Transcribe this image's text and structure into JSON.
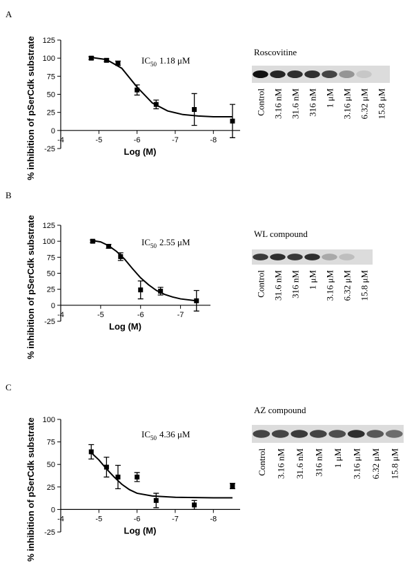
{
  "chart_data": [
    {
      "type": "scatter",
      "panel": "A",
      "xlabel": "Log (M)",
      "ylabel": "% inhibition of pSerCdk substrate",
      "annotation": {
        "prefix": "IC",
        "subscript": "50",
        "text": "1.18 μM"
      },
      "x": [
        -4.8,
        -5.2,
        -5.5,
        -6,
        -6.5,
        -7.5,
        -8.5
      ],
      "values": [
        100,
        97,
        93,
        56,
        36,
        29,
        13
      ],
      "errors": [
        2,
        2,
        3,
        7,
        6,
        22,
        23
      ],
      "fit": {
        "x": [
          -4.8,
          -5.2,
          -5.6,
          -6.0,
          -6.4,
          -6.8,
          -7.2,
          -7.6,
          -8.0,
          -8.5
        ],
        "y": [
          101,
          98,
          86,
          60,
          38,
          27,
          22,
          20,
          19,
          19
        ]
      },
      "color": "#000000",
      "xlim": [
        -4,
        -8.7
      ],
      "xticks": [
        -4,
        -5,
        -6,
        -7,
        -8
      ],
      "ylim": [
        -25,
        125
      ],
      "yticks": [
        -25,
        0,
        25,
        50,
        75,
        100,
        125
      ]
    },
    {
      "type": "scatter",
      "panel": "B",
      "xlabel": "Log (M)",
      "ylabel": "% inhibition of pSerCdk substrate",
      "annotation": {
        "prefix": "IC",
        "subscript": "50",
        "text": "2.55 μM"
      },
      "x": [
        -4.8,
        -5.2,
        -5.5,
        -6,
        -6.5,
        -7.4
      ],
      "values": [
        100,
        92,
        76,
        24,
        22,
        7
      ],
      "errors": [
        2,
        3,
        6,
        14,
        6,
        16
      ],
      "fit": {
        "x": [
          -4.8,
          -5.0,
          -5.2,
          -5.4,
          -5.6,
          -5.8,
          -6.0,
          -6.2,
          -6.4,
          -6.6,
          -6.8,
          -7.0,
          -7.4
        ],
        "y": [
          101,
          99,
          93,
          84,
          72,
          57,
          43,
          32,
          23,
          17,
          13,
          10,
          7
        ]
      },
      "color": "#000000",
      "xlim": [
        -4,
        -7.75
      ],
      "xticks": [
        -4,
        -5,
        -6,
        -7
      ],
      "ylim": [
        -25,
        125
      ],
      "yticks": [
        -25,
        0,
        25,
        50,
        75,
        100,
        125
      ]
    },
    {
      "type": "scatter",
      "panel": "C",
      "xlabel": "Log (M)",
      "ylabel": "% inhibition of pSerCdk substrate",
      "annotation": {
        "prefix": "IC",
        "subscript": "50",
        "text": "4.36 μM"
      },
      "x": [
        -4.8,
        -5.2,
        -5.5,
        -6,
        -6.5,
        -7.5,
        -8.5
      ],
      "values": [
        64,
        47,
        36,
        36,
        10,
        5,
        26
      ],
      "errors": [
        8,
        11,
        13,
        5,
        8,
        5,
        3
      ],
      "fit": {
        "x": [
          -4.8,
          -5.0,
          -5.2,
          -5.4,
          -5.6,
          -5.8,
          -6.0,
          -6.4,
          -7.0,
          -8.0,
          -8.5
        ],
        "y": [
          63,
          55,
          45,
          36,
          28,
          22,
          18,
          15,
          13.5,
          13,
          13
        ]
      },
      "color": "#000000",
      "xlim": [
        -4,
        -8.7
      ],
      "xticks": [
        -4,
        -5,
        -6,
        -7,
        -8
      ],
      "ylim": [
        -25,
        100
      ],
      "yticks": [
        -25,
        0,
        25,
        50,
        75,
        100
      ]
    }
  ],
  "blots": [
    {
      "title": "Roscovitine",
      "lanes": [
        "Control",
        "3.16 nM",
        "31.6 nM",
        "316 nM",
        "1 μM",
        "3.16 μM",
        "6.32 μM",
        "15.8 μM"
      ]
    },
    {
      "title": "WL compound",
      "lanes": [
        "Control",
        "31.6 nM",
        "316 nM",
        "1 μM",
        "3.16 μM",
        "6.32 μM",
        "15.8 μM"
      ]
    },
    {
      "title": "AZ compound",
      "lanes": [
        "Control",
        "3.16 nM",
        "31.6 nM",
        "316 nM",
        "1 μM",
        "3.16 μM",
        "6.32 μM",
        "15.8 μM"
      ]
    }
  ]
}
